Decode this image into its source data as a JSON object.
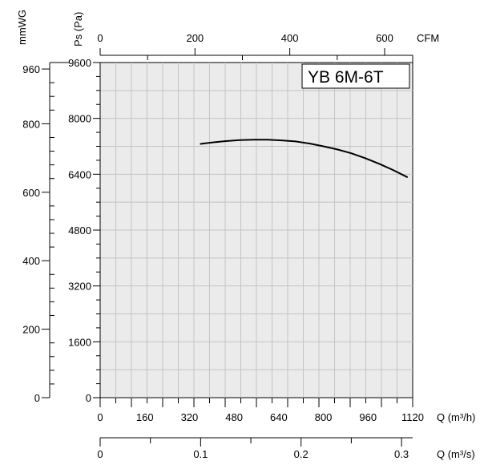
{
  "chart_data": {
    "type": "line",
    "title": "YB 6M-6T",
    "axes": {
      "pa": {
        "label": "Ps (Pa)",
        "range": [
          0,
          9600
        ],
        "ticks": [
          0,
          1600,
          3200,
          4800,
          6400,
          8000,
          9600
        ]
      },
      "mmwg": {
        "label": "mmWG",
        "range": [
          0,
          978.9
        ],
        "ticks": [
          0,
          200,
          400,
          600,
          800,
          960
        ]
      },
      "m3h": {
        "label": "Q (m³/h)",
        "range": [
          0,
          1120
        ],
        "ticks": [
          0,
          160,
          320,
          480,
          640,
          800,
          960,
          1120
        ]
      },
      "cfm": {
        "label": "CFM",
        "range": [
          0,
          659.2
        ],
        "ticks": [
          0,
          200,
          400,
          600
        ]
      },
      "m3s": {
        "label": "Q (m³/s)",
        "range": [
          0,
          0.3111
        ],
        "ticks": [
          "0",
          "0.1",
          "0.2",
          "0.3"
        ]
      }
    },
    "grid": true,
    "series": [
      {
        "x": [
          360,
          400,
          450,
          500,
          550,
          600,
          650,
          700,
          750,
          800,
          850,
          900,
          950,
          1000,
          1050,
          1100
        ],
        "y": [
          7270,
          7310,
          7350,
          7380,
          7390,
          7390,
          7370,
          7340,
          7280,
          7200,
          7110,
          7000,
          6860,
          6700,
          6520,
          6320
        ]
      }
    ]
  }
}
